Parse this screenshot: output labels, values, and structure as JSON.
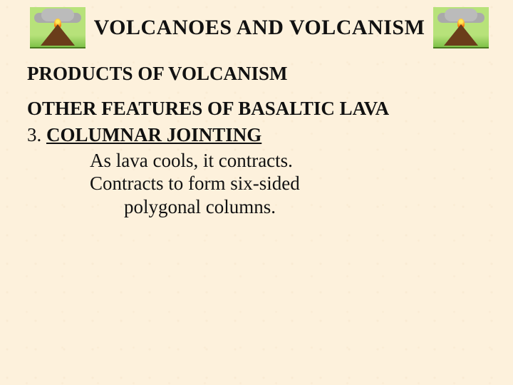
{
  "slide": {
    "title": "VOLCANOES AND VOLCANISM",
    "subtitle": "PRODUCTS OF VOLCANISM",
    "section_heading": "OTHER FEATURES OF BASALTIC LAVA",
    "item_number": "3.",
    "item_label": "COLUMNAR JOINTING",
    "body_line1": "As lava cools, it contracts.",
    "body_line2": "Contracts to form six-sided",
    "body_line3": "polygonal columns."
  },
  "colors": {
    "background": "#fdf1dc",
    "text": "#111111"
  },
  "typography": {
    "font_family": "Times New Roman",
    "title_fontsize_pt": 22,
    "subtitle_fontsize_pt": 20,
    "body_fontsize_pt": 20,
    "title_weight": "bold",
    "subtitle_weight": "bold"
  },
  "icons": {
    "left": "volcano-icon",
    "right": "volcano-icon"
  }
}
